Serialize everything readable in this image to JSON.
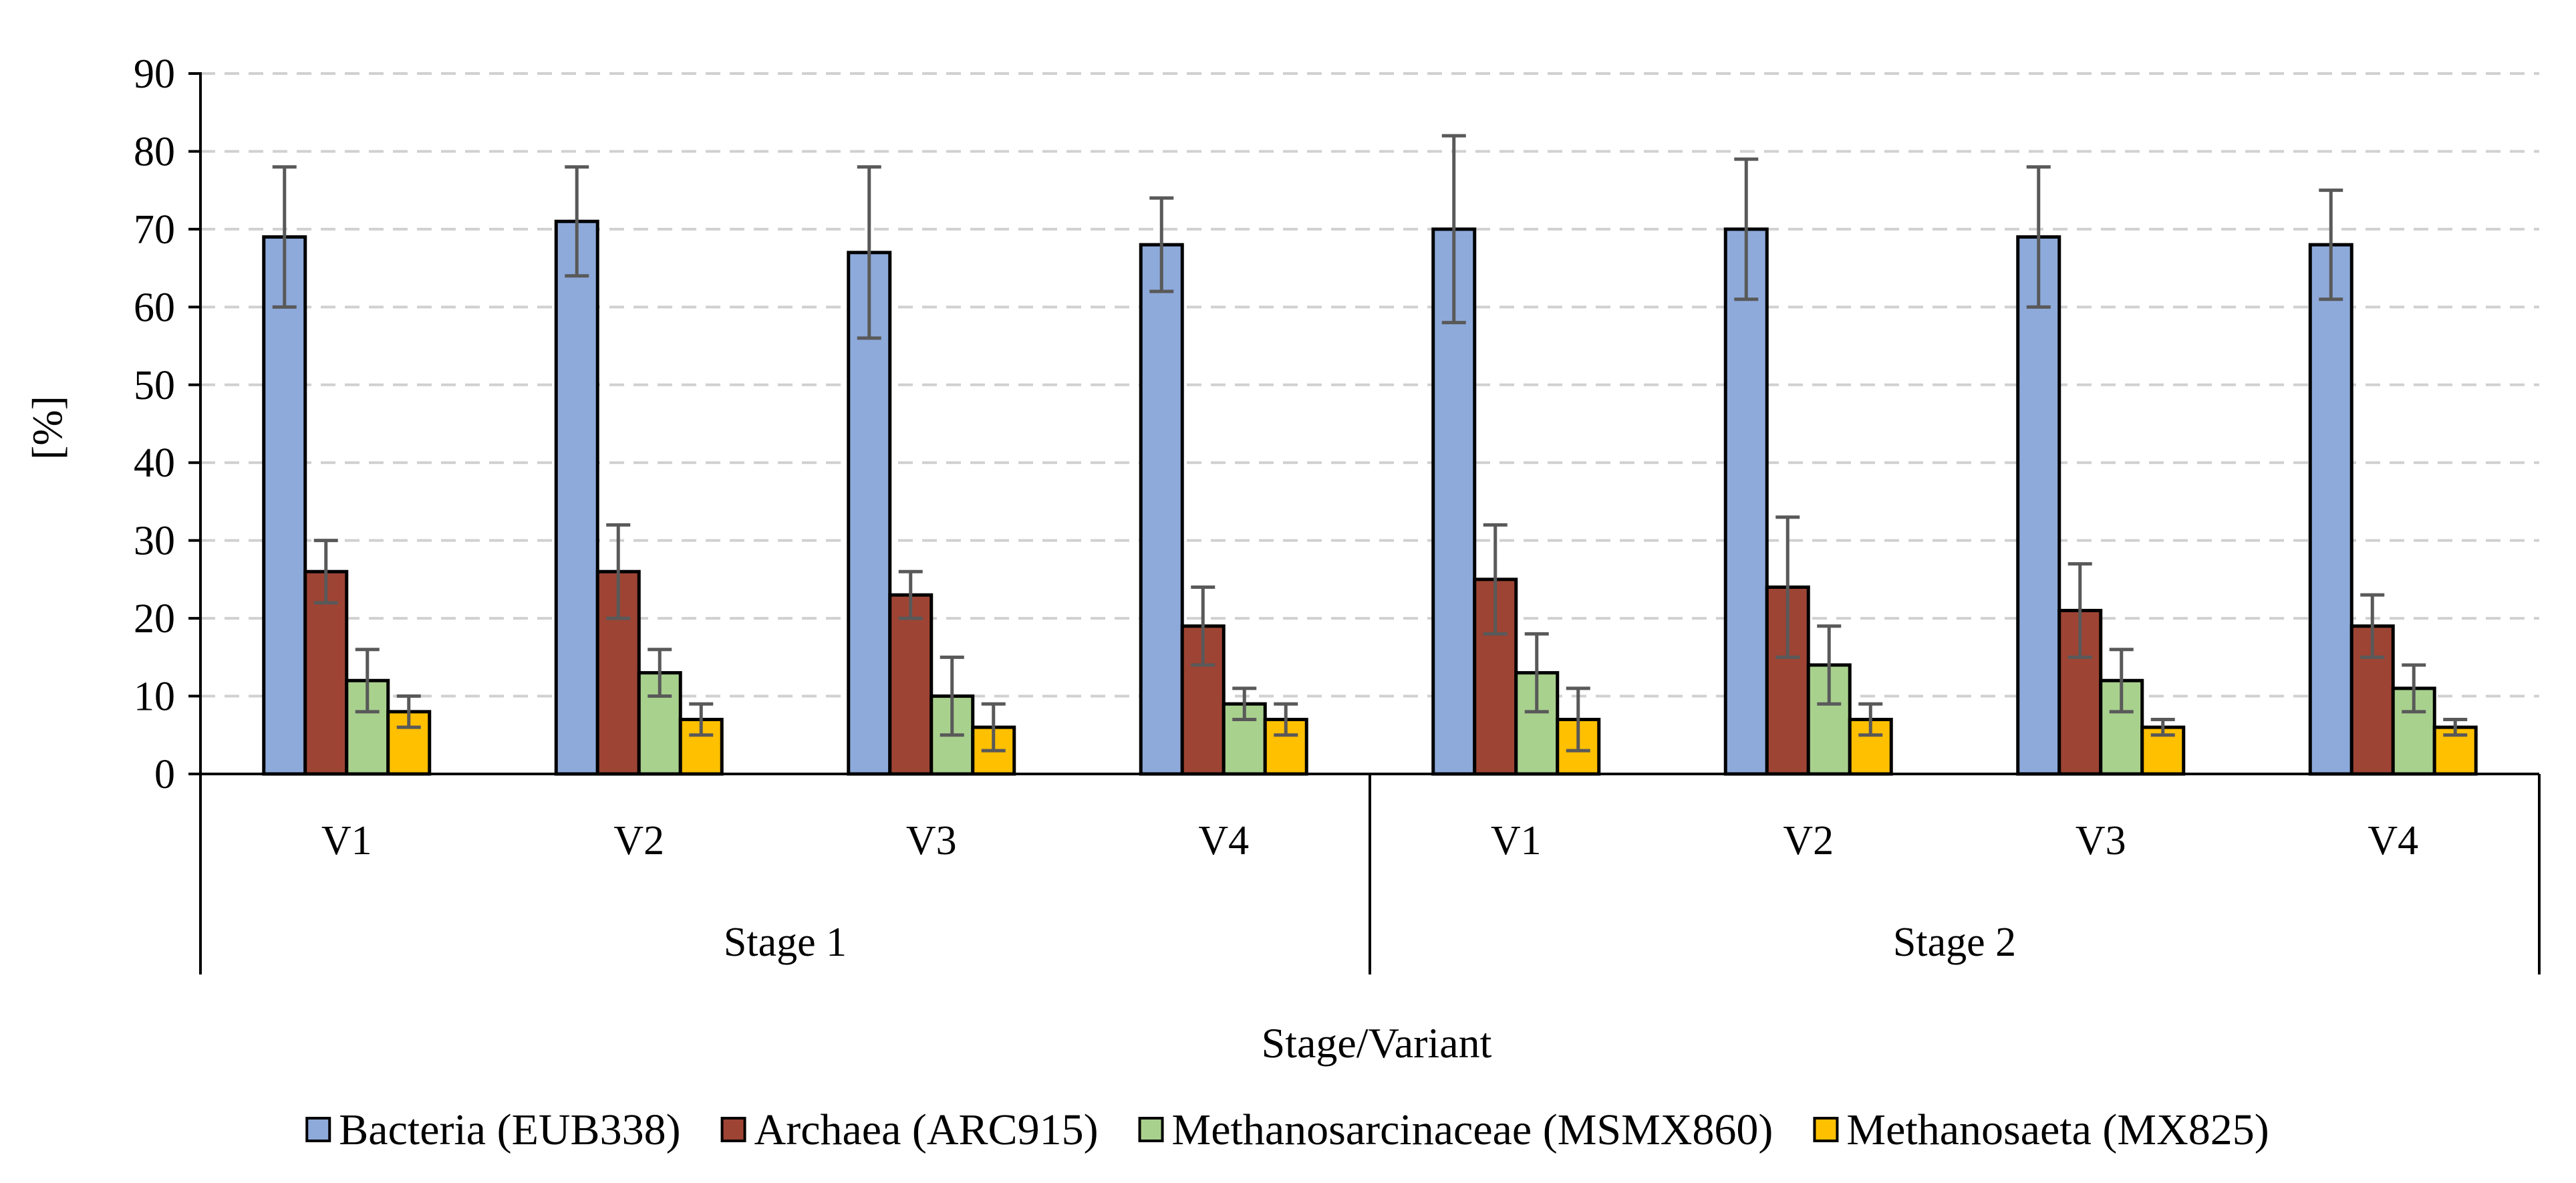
{
  "chart_data": {
    "type": "bar",
    "title": "",
    "xlabel": "Stage/Variant",
    "ylabel": "[%]",
    "ylim": [
      0,
      90
    ],
    "yticks": [
      0,
      10,
      20,
      30,
      40,
      50,
      60,
      70,
      80,
      90
    ],
    "grid": "horizontal-dashed",
    "groups": [
      "Stage 1",
      "Stage 2"
    ],
    "categories": [
      "V1",
      "V2",
      "V3",
      "V4",
      "V1",
      "V2",
      "V3",
      "V4"
    ],
    "series": [
      {
        "name": "Bacteria (EUB338)",
        "color": "#8EAADB",
        "values": [
          69,
          71,
          67,
          68,
          70,
          70,
          69,
          68
        ],
        "error_low": [
          60,
          64,
          56,
          62,
          58,
          61,
          60,
          61
        ],
        "error_high": [
          78,
          78,
          78,
          74,
          82,
          79,
          78,
          75
        ]
      },
      {
        "name": "Archaea (ARC915)",
        "color": "#9E4434",
        "values": [
          26,
          26,
          23,
          19,
          25,
          24,
          21,
          19
        ],
        "error_low": [
          22,
          20,
          20,
          14,
          18,
          15,
          15,
          15
        ],
        "error_high": [
          30,
          32,
          26,
          24,
          32,
          33,
          27,
          23
        ]
      },
      {
        "name": "Methanosarcinaceae (MSMX860)",
        "color": "#A9D18E",
        "values": [
          12,
          13,
          10,
          9,
          13,
          14,
          12,
          11
        ],
        "error_low": [
          8,
          10,
          5,
          7,
          8,
          9,
          8,
          8
        ],
        "error_high": [
          16,
          16,
          15,
          11,
          18,
          19,
          16,
          14
        ]
      },
      {
        "name": "Methanosaeta (MX825)",
        "color": "#FFC000",
        "values": [
          8,
          7,
          6,
          7,
          7,
          7,
          6,
          6
        ],
        "error_low": [
          6,
          5,
          3,
          5,
          3,
          5,
          5,
          5
        ],
        "error_high": [
          10,
          9,
          9,
          9,
          11,
          9,
          7,
          7
        ]
      }
    ],
    "legend": "bottom"
  }
}
